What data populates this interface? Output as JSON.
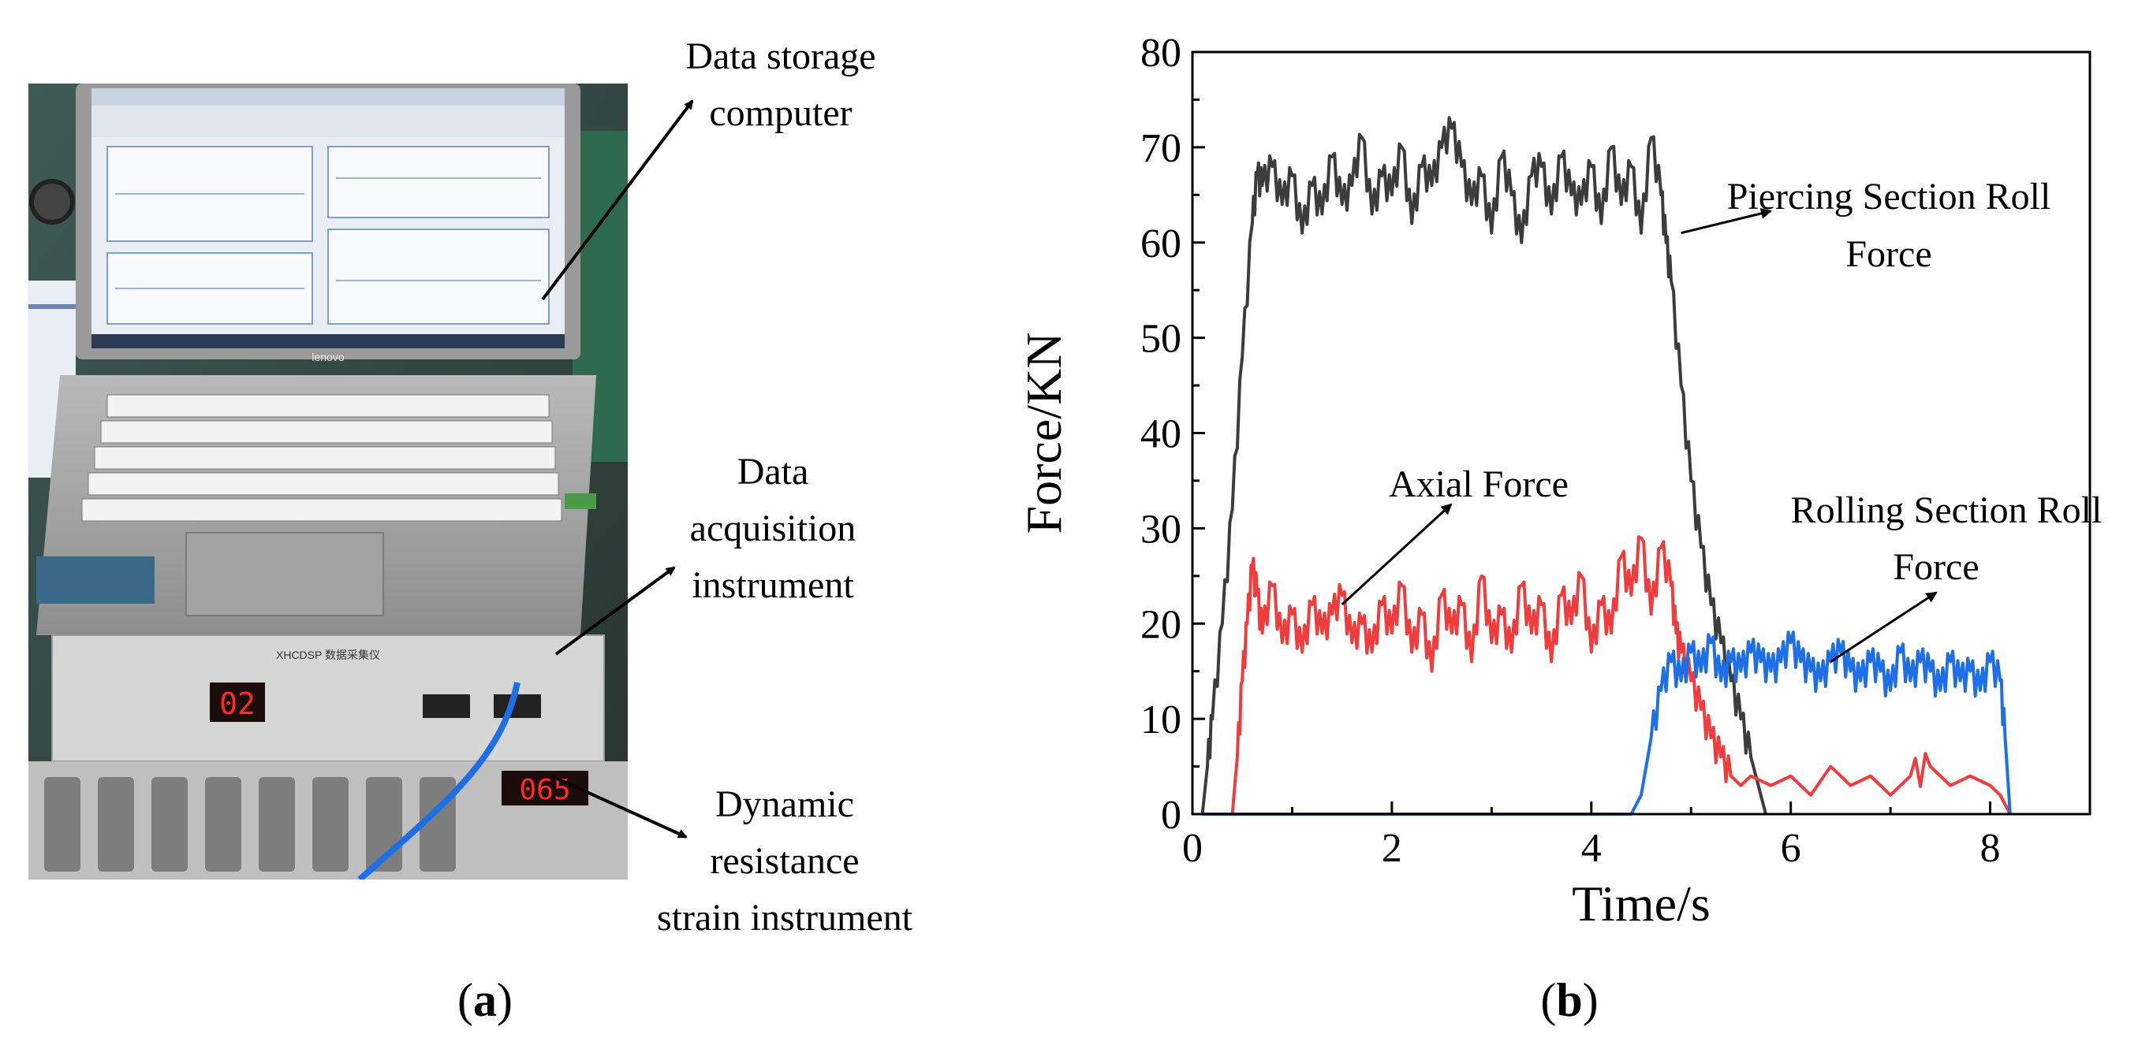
{
  "panel_a": {
    "label": "a",
    "photo_description_icon": "laptop-and-instrument-photo",
    "screen_brand": "lenovo",
    "instrument_header": "XHCDSP 数据采集仪",
    "channel_display": "02",
    "strain_display": "065",
    "annotations": {
      "storage_line1": "Data storage",
      "storage_line2": "computer",
      "acq_line1": "Data",
      "acq_line2": "acquisition",
      "acq_line3": "instrument",
      "strain_line1": "Dynamic",
      "strain_line2": "resistance",
      "strain_line3": "strain instrument"
    }
  },
  "panel_b": {
    "label": "b"
  },
  "colors": {
    "piercing": "#3c3c3c",
    "axial": "#f03c3c",
    "rolling": "#1e6ee6"
  },
  "chart_data": {
    "type": "line",
    "title": "",
    "xlabel": "Time/s",
    "ylabel": "Force/KN",
    "xlim": [
      0,
      9
    ],
    "ylim": [
      0,
      80
    ],
    "xticks": [
      0,
      2,
      4,
      6,
      8
    ],
    "yticks": [
      0,
      10,
      20,
      30,
      40,
      50,
      60,
      70,
      80
    ],
    "grid": false,
    "annotations": [
      {
        "text_lines": [
          "Piercing Section Roll",
          "Force"
        ],
        "points_to": [
          4.9,
          61
        ]
      },
      {
        "text_lines": [
          "Axial Force"
        ],
        "points_to": [
          1.5,
          22
        ]
      },
      {
        "text_lines": [
          "Rolling Section Roll",
          "Force"
        ],
        "points_to": [
          6.4,
          16
        ]
      }
    ],
    "series": [
      {
        "key": "piercing",
        "x": [
          0.1,
          0.15,
          0.2,
          0.3,
          0.4,
          0.5,
          0.6,
          0.65,
          0.7,
          0.8,
          0.9,
          1.0,
          1.1,
          1.2,
          1.3,
          1.4,
          1.5,
          1.6,
          1.7,
          1.8,
          1.9,
          2.0,
          2.1,
          2.2,
          2.3,
          2.4,
          2.5,
          2.6,
          2.7,
          2.8,
          2.9,
          3.0,
          3.1,
          3.2,
          3.3,
          3.4,
          3.5,
          3.6,
          3.7,
          3.8,
          3.9,
          4.0,
          4.1,
          4.2,
          4.3,
          4.4,
          4.5,
          4.6,
          4.7,
          4.75,
          4.8,
          4.9,
          5.0,
          5.1,
          5.2,
          5.3,
          5.4,
          5.5,
          5.6,
          5.7,
          5.75
        ],
        "y": [
          0,
          5,
          10,
          20,
          32,
          48,
          62,
          67,
          66,
          68,
          64,
          67,
          61,
          66,
          63,
          69,
          64,
          66,
          71,
          63,
          67,
          65,
          70,
          62,
          68,
          66,
          70,
          72,
          68,
          64,
          67,
          61,
          69,
          65,
          60,
          67,
          68,
          63,
          69,
          65,
          64,
          68,
          62,
          70,
          64,
          68,
          61,
          71,
          65,
          60,
          56,
          45,
          35,
          28,
          22,
          18,
          14,
          10,
          6,
          2,
          0
        ]
      },
      {
        "key": "axial",
        "x": [
          0.4,
          0.45,
          0.5,
          0.55,
          0.6,
          0.65,
          0.7,
          0.8,
          0.9,
          1.0,
          1.1,
          1.2,
          1.3,
          1.4,
          1.5,
          1.6,
          1.7,
          1.8,
          1.9,
          2.0,
          2.1,
          2.2,
          2.3,
          2.4,
          2.5,
          2.6,
          2.7,
          2.8,
          2.9,
          3.0,
          3.1,
          3.2,
          3.3,
          3.4,
          3.5,
          3.6,
          3.7,
          3.8,
          3.9,
          4.0,
          4.1,
          4.2,
          4.3,
          4.4,
          4.5,
          4.6,
          4.7,
          4.8,
          4.85,
          4.9,
          5.0,
          5.1,
          5.2,
          5.3,
          5.4,
          5.5,
          5.6,
          5.8,
          6.0,
          6.2,
          6.4,
          6.6,
          6.8,
          7.0,
          7.2,
          7.4,
          7.6,
          7.8,
          8.0,
          8.1,
          8.2
        ],
        "y": [
          0,
          6,
          14,
          20,
          26,
          23,
          19,
          24,
          18,
          21,
          17,
          22,
          19,
          21,
          23,
          18,
          20,
          17,
          22,
          19,
          24,
          17,
          21,
          15,
          23,
          19,
          22,
          16,
          25,
          18,
          21,
          17,
          24,
          19,
          22,
          16,
          23,
          20,
          25,
          17,
          22,
          19,
          27,
          23,
          29,
          21,
          28,
          24,
          19,
          17,
          14,
          11,
          8,
          6,
          4,
          3,
          4,
          3,
          4,
          2,
          5,
          3,
          4,
          2,
          4,
          5,
          3,
          4,
          3,
          2,
          0
        ]
      },
      {
        "key": "rolling",
        "x": [
          0.1,
          4.4,
          4.5,
          4.6,
          4.7,
          4.8,
          4.9,
          5.0,
          5.1,
          5.2,
          5.3,
          5.4,
          5.5,
          5.6,
          5.7,
          5.8,
          5.9,
          6.0,
          6.1,
          6.2,
          6.3,
          6.4,
          6.5,
          6.6,
          6.7,
          6.8,
          6.9,
          7.0,
          7.1,
          7.2,
          7.3,
          7.4,
          7.5,
          7.6,
          7.7,
          7.8,
          7.9,
          8.0,
          8.1,
          8.15,
          8.2
        ],
        "y": [
          0,
          0,
          2,
          8,
          13,
          16,
          14,
          17,
          15,
          18,
          14,
          16,
          15,
          17,
          16,
          15,
          16,
          18,
          16,
          15,
          14,
          16,
          17,
          15,
          14,
          16,
          15,
          13,
          17,
          14,
          16,
          15,
          13,
          16,
          14,
          15,
          13,
          16,
          14,
          8,
          0
        ]
      }
    ]
  }
}
